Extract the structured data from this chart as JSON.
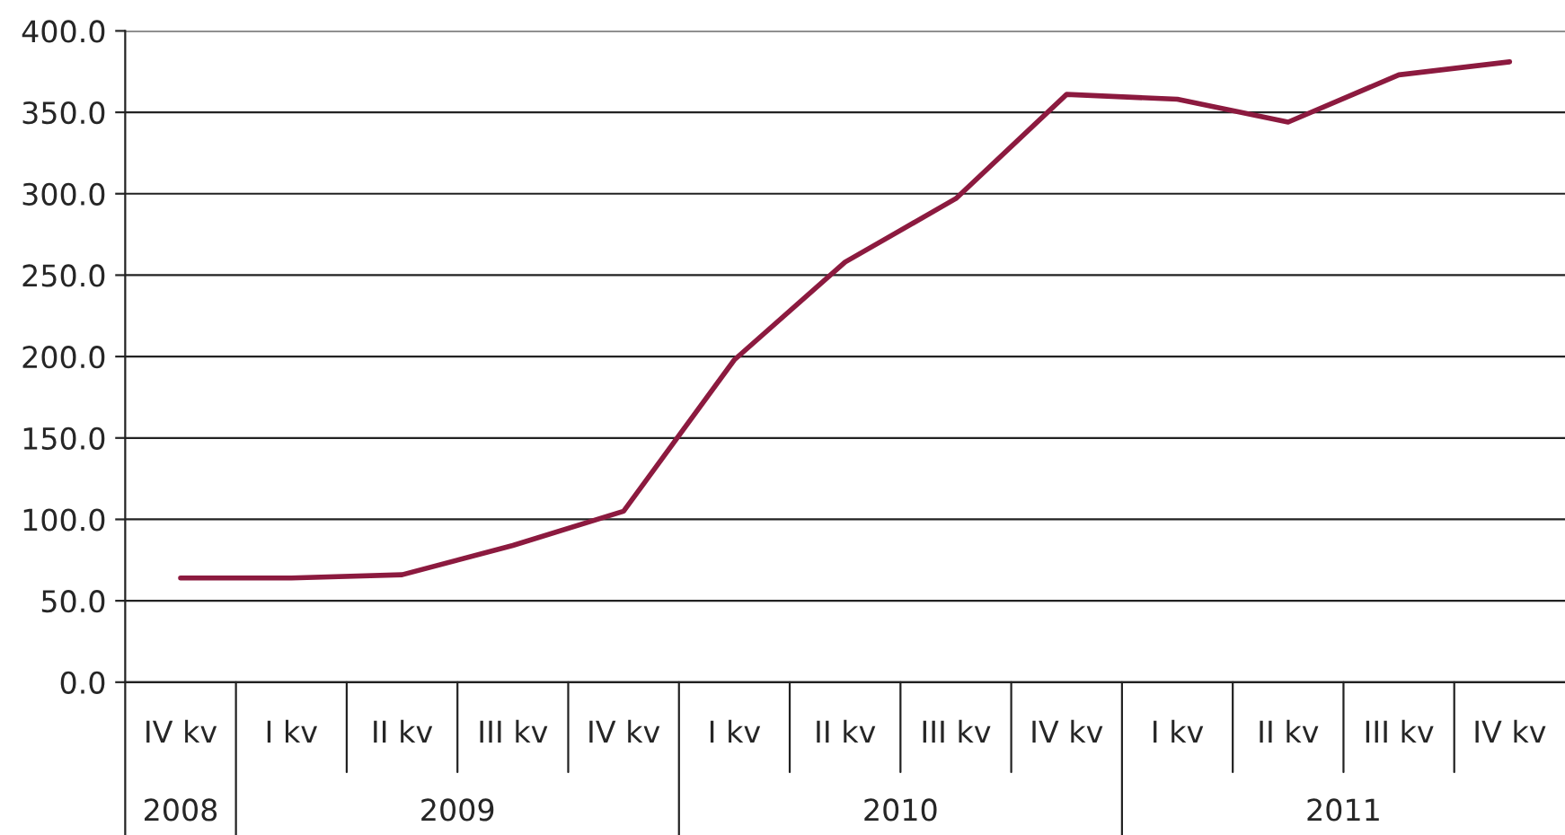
{
  "chart_data": {
    "type": "line",
    "categories": [
      "IV kv",
      "I kv",
      "II kv",
      "III kv",
      "IV kv",
      "I kv",
      "II kv",
      "III kv",
      "IV kv",
      "I kv",
      "II kv",
      "III kv",
      "IV kv"
    ],
    "series": [
      {
        "color": "#8c1a3f",
        "values": [
          64,
          64,
          66,
          84,
          105,
          198,
          258,
          297,
          361,
          358,
          344,
          373,
          381
        ]
      }
    ],
    "ylim": [
      0,
      400
    ],
    "yticks": [
      {
        "value": 0,
        "label": "0.0"
      },
      {
        "value": 50,
        "label": "50.0"
      },
      {
        "value": 100,
        "label": "100.0"
      },
      {
        "value": 150,
        "label": "150.0"
      },
      {
        "value": 200,
        "label": "200.0"
      },
      {
        "value": 250,
        "label": "250.0"
      },
      {
        "value": 300,
        "label": "300.0"
      },
      {
        "value": 350,
        "label": "350.0"
      },
      {
        "value": 400,
        "label": "400.0"
      }
    ],
    "grid": "y",
    "legend": false,
    "marker": "none",
    "line_style": "solid",
    "annotations": [
      "2008",
      "2009",
      "2010",
      "2011"
    ]
  }
}
